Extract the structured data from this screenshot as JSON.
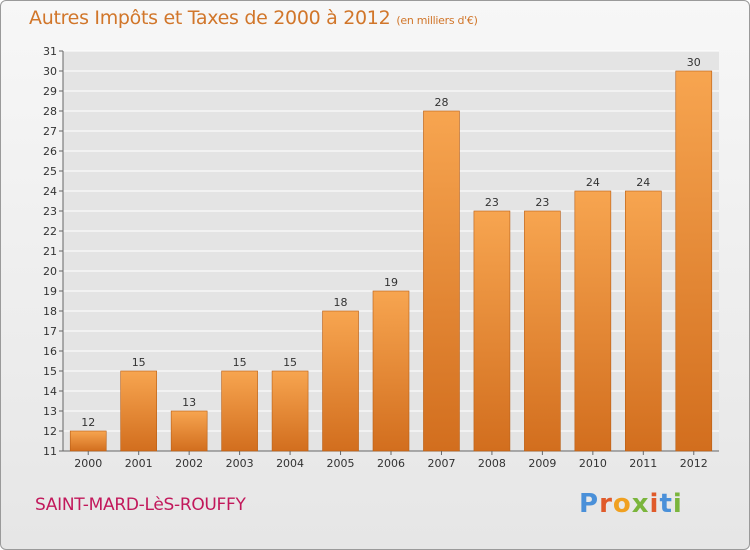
{
  "header": {
    "title": "Autres Impôts et Taxes de 2000 à 2012",
    "subtitle": "(en milliers d'€)"
  },
  "footer": {
    "commune": "SAINT-MARD-LèS-ROUFFY",
    "logo_letters": [
      "P",
      "r",
      "o",
      "x",
      "i",
      "t",
      "i"
    ]
  },
  "colors": {
    "bar_light": "#f7a550",
    "bar_dark": "#d26e1e",
    "title": "#d1762a",
    "commune": "#c2185b",
    "grid": "#ffffff",
    "plot_bg": "#e4e4e4",
    "logo": [
      "#4a90d9",
      "#e05a2a",
      "#f0a020",
      "#7ab53c",
      "#e05a2a",
      "#4a90d9",
      "#7ab53c"
    ]
  },
  "chart_data": {
    "type": "bar",
    "title": "Autres Impôts et Taxes de 2000 à 2012",
    "subtitle": "(en milliers d'€)",
    "categories": [
      "2000",
      "2001",
      "2002",
      "2003",
      "2004",
      "2005",
      "2006",
      "2007",
      "2008",
      "2009",
      "2010",
      "2011",
      "2012"
    ],
    "values": [
      12,
      15,
      13,
      15,
      15,
      18,
      19,
      28,
      23,
      23,
      24,
      24,
      30
    ],
    "yticks": [
      11,
      12,
      13,
      14,
      15,
      16,
      17,
      18,
      19,
      20,
      21,
      22,
      23,
      24,
      25,
      26,
      27,
      28,
      29,
      30,
      31
    ],
    "ylim": [
      11,
      31
    ],
    "grid": true,
    "legend": "none",
    "data_labels": true
  }
}
